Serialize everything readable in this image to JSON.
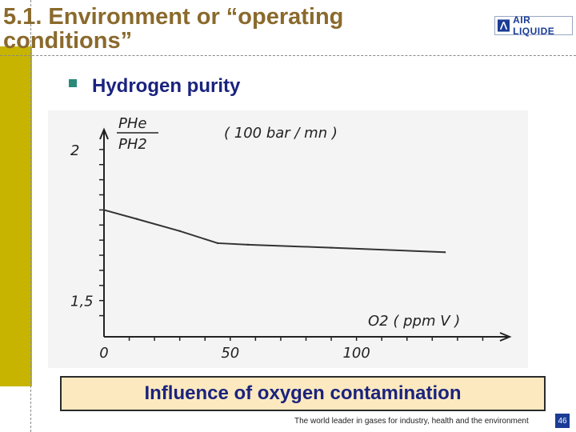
{
  "slide": {
    "title": "5.1. Environment or “operating conditions”",
    "logo_text": "AIR LIQUIDE",
    "bullet": "Hydrogen purity",
    "caption": "Influence of oxygen contamination",
    "footer": "The world leader in gases for industry, health and the environment",
    "page_number": "46",
    "colors": {
      "title": "#8a6a2c",
      "olive_bar": "#c6b400",
      "bullet_text": "#1a237e",
      "caption_bg": "#fde9bf",
      "brand": "#1a3c96"
    }
  },
  "chart_data": {
    "type": "line",
    "ylabel_num": "PHe",
    "ylabel_den": "PH2",
    "ylabel_unit": "( 100 bar / mn )",
    "xlabel": "O2  ( ppm V )",
    "x_ticks": [
      "0",
      "50",
      "100"
    ],
    "y_ticks": [
      "2",
      "1,5"
    ],
    "xlim": [
      0,
      160
    ],
    "ylim": [
      1.38,
      2.05
    ],
    "series": [
      {
        "x": [
          0,
          13,
          30,
          45,
          57,
          90,
          135
        ],
        "y": [
          1.8,
          1.77,
          1.73,
          1.69,
          1.685,
          1.675,
          1.66
        ]
      }
    ]
  }
}
